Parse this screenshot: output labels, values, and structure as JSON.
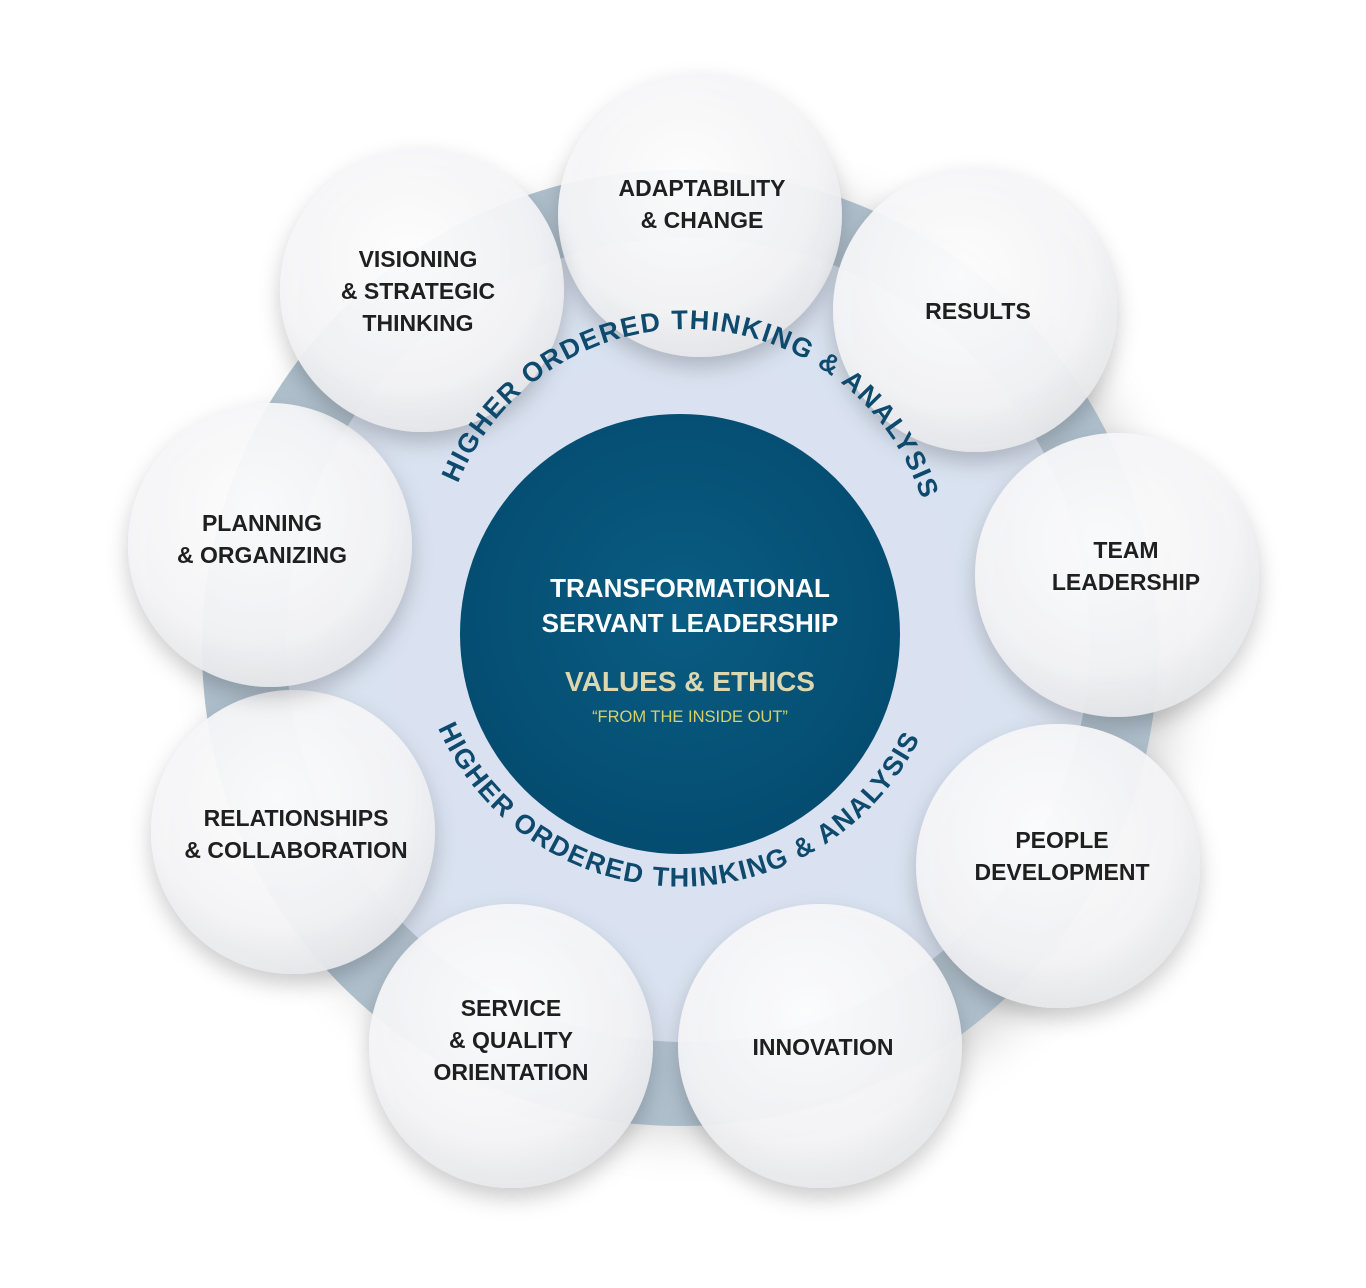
{
  "core": {
    "title_line1": "TRANSFORMATIONAL",
    "title_line2": "SERVANT LEADERSHIP",
    "values": "VALUES & ETHICS",
    "tagline": "“FROM THE INSIDE OUT”"
  },
  "ring": {
    "top_text": "HIGHER ORDERED THINKING & ANALYSIS",
    "bottom_text": "HIGHER ORDERED THINKING & ANALYSIS"
  },
  "competencies": [
    {
      "id": "adaptability",
      "lines": [
        "ADAPTABILITY",
        "& CHANGE"
      ]
    },
    {
      "id": "results",
      "lines": [
        "RESULTS"
      ]
    },
    {
      "id": "team-leadership",
      "lines": [
        "TEAM",
        "LEADERSHIP"
      ]
    },
    {
      "id": "people-development",
      "lines": [
        "PEOPLE",
        "DEVELOPMENT"
      ]
    },
    {
      "id": "innovation",
      "lines": [
        "INNOVATION"
      ]
    },
    {
      "id": "service-quality",
      "lines": [
        "SERVICE",
        "& QUALITY",
        "ORIENTATION"
      ]
    },
    {
      "id": "relationships",
      "lines": [
        "RELATIONSHIPS",
        "& COLLABORATION"
      ]
    },
    {
      "id": "planning",
      "lines": [
        "PLANNING",
        "& ORGANIZING"
      ]
    },
    {
      "id": "visioning",
      "lines": [
        "VISIONING",
        "& STRATEGIC",
        "THINKING"
      ]
    }
  ],
  "colors": {
    "core": "#05557a",
    "outer_ring": "#b5c6d2",
    "inner_disc": "#dfe6f6",
    "ring_text": "#0d4a6e",
    "node_fill": "#f7f7f8",
    "values_text": "#ddd7b0",
    "tagline_text": "#d6d26a"
  }
}
